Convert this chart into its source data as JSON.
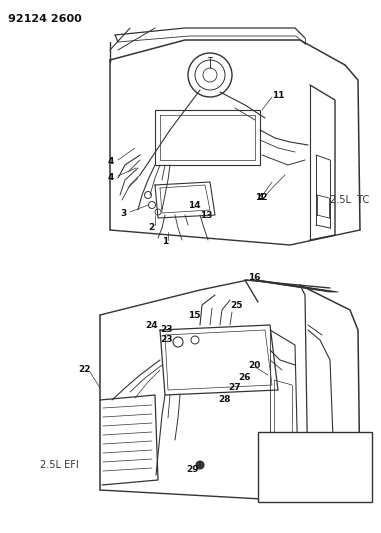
{
  "title": "92124 2600",
  "bg_color": "#ffffff",
  "text_color": "#111111",
  "label_2_5L_TC": "2.5L  TC",
  "label_2_5L_EFI": "2.5L EFI",
  "figsize": [
    3.81,
    5.33
  ],
  "dpi": 100
}
